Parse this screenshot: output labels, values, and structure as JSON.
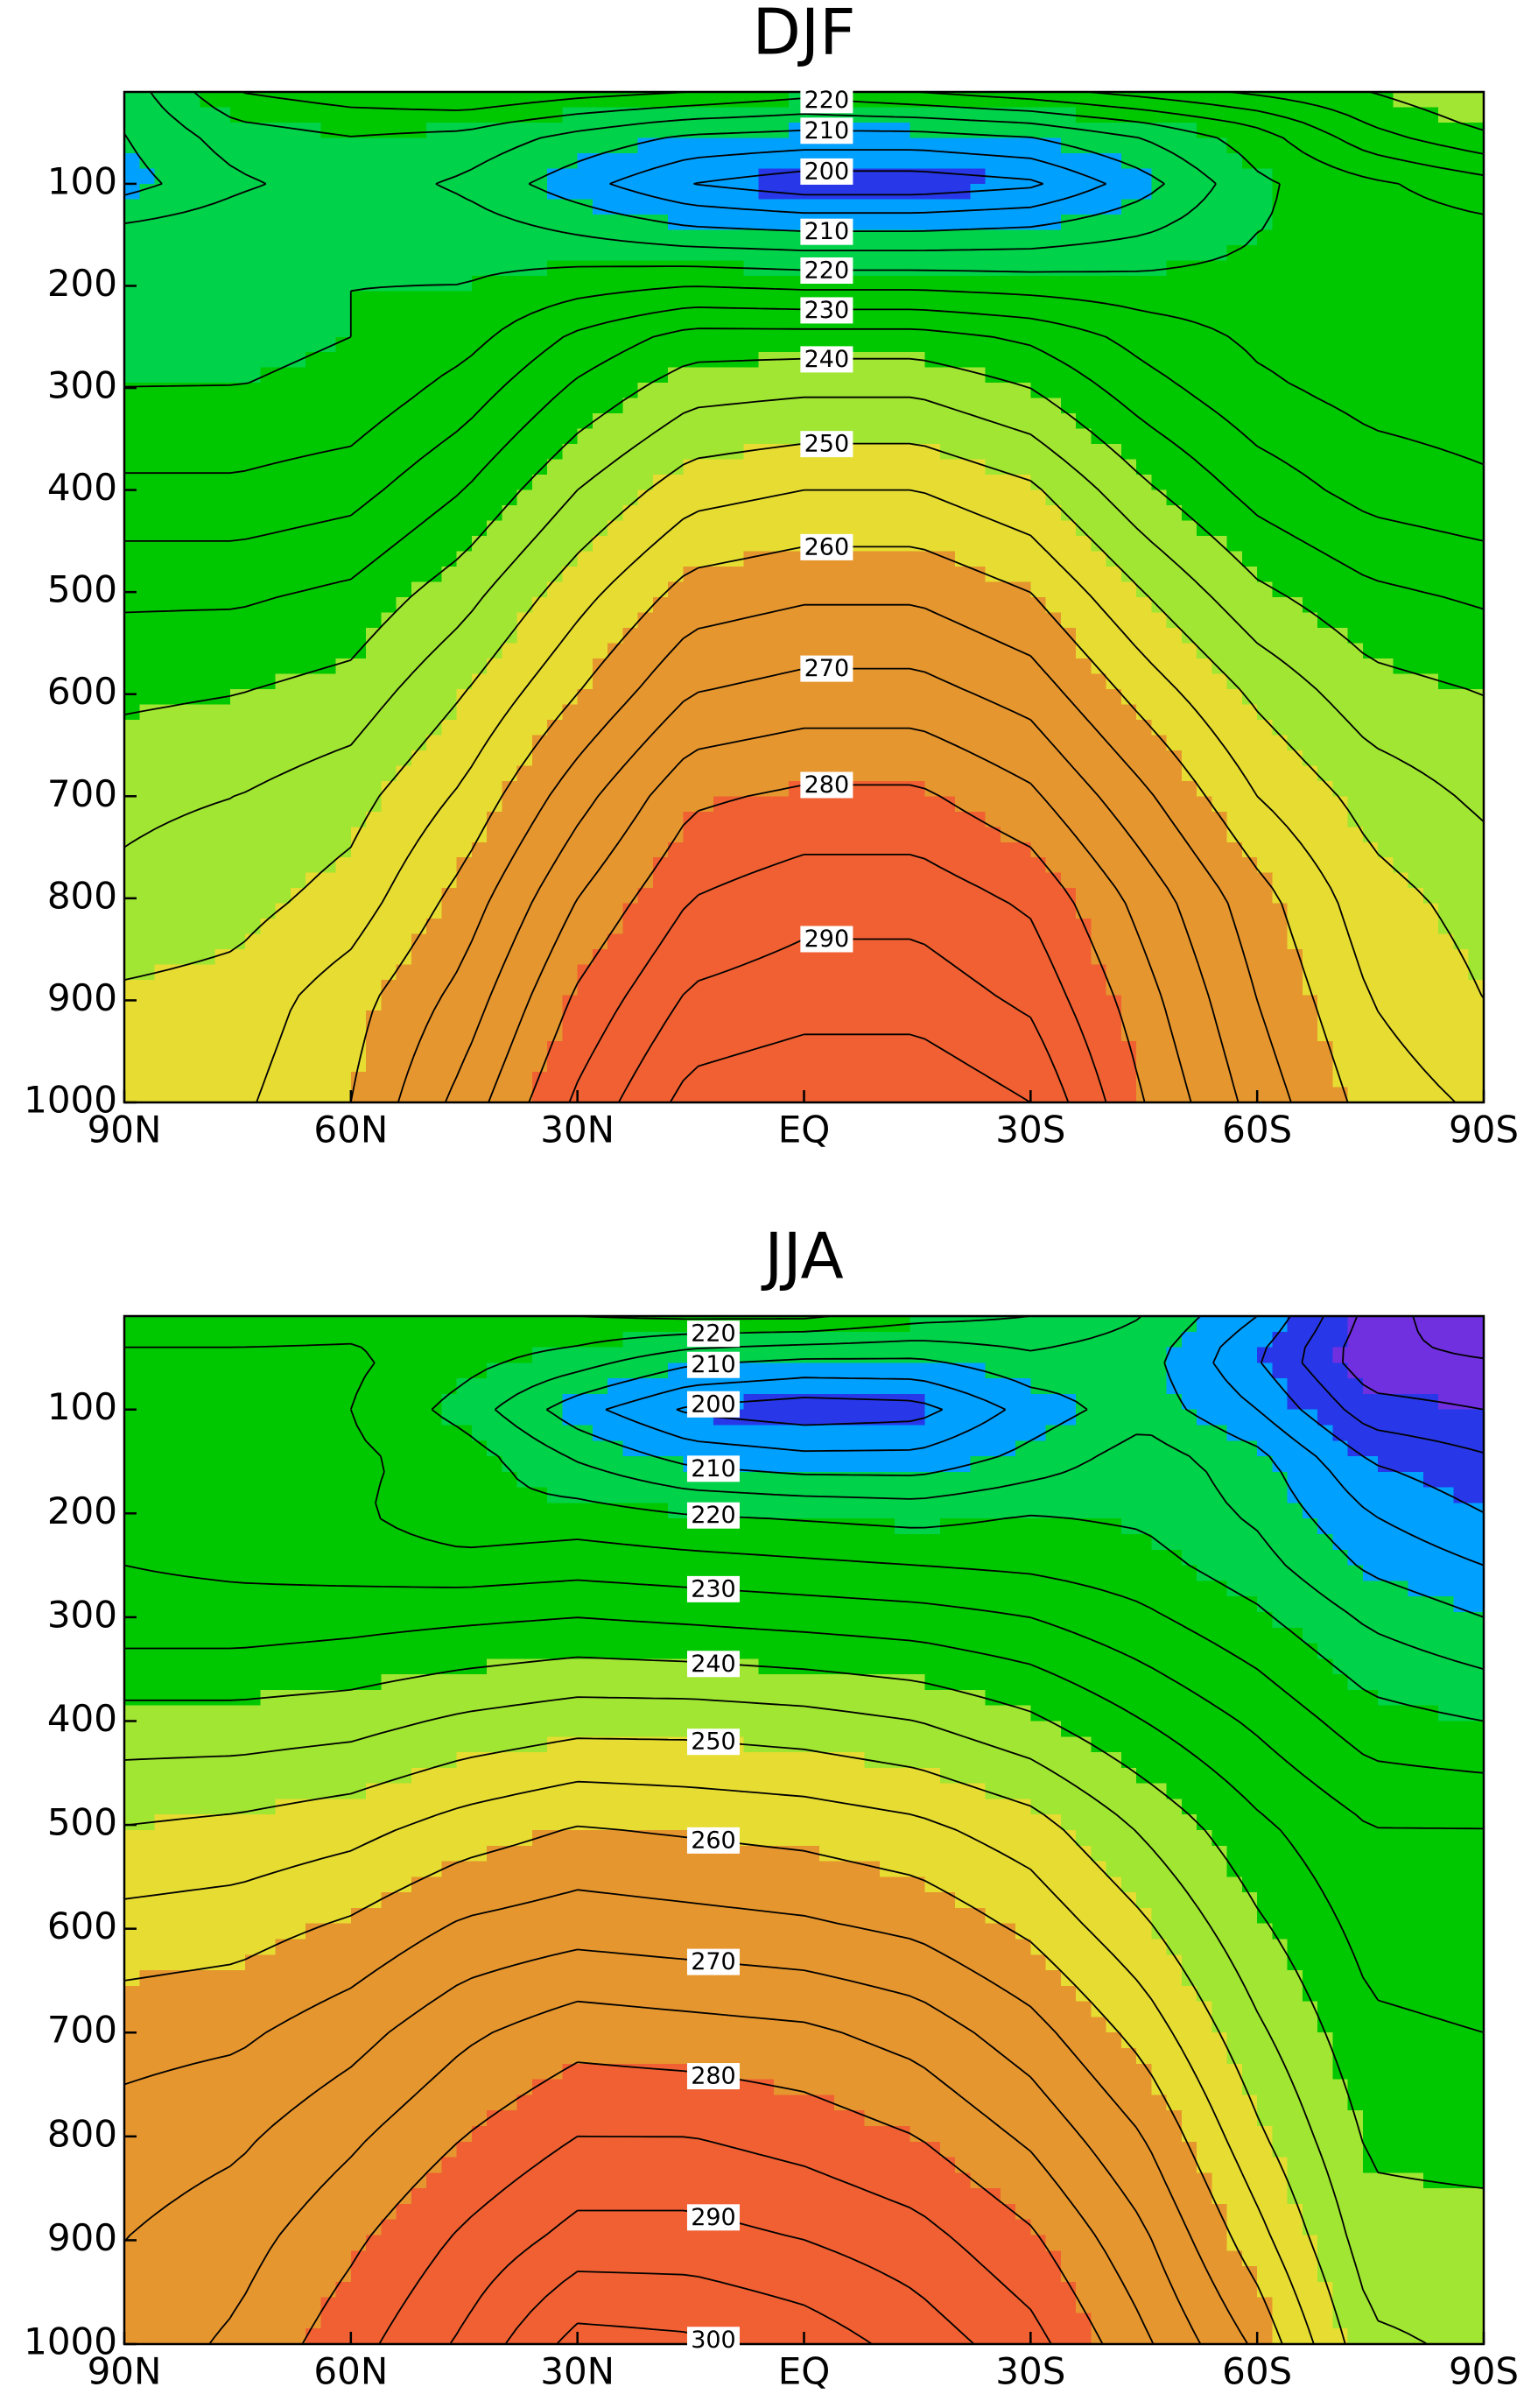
{
  "chart_data": [
    {
      "type": "contour",
      "title": "DJF",
      "x": [
        90,
        75,
        60,
        45,
        30,
        15,
        0,
        -15,
        -30,
        -45,
        -60,
        -75,
        -90
      ],
      "y": [
        10,
        50,
        100,
        150,
        200,
        250,
        300,
        400,
        500,
        600,
        700,
        800,
        900,
        1000
      ],
      "values": [
        [
          212,
          225,
          228,
          230,
          227,
          225,
          222,
          225,
          228,
          232,
          236,
          240,
          245
        ],
        [
          210,
          218,
          220,
          219,
          214,
          210,
          209,
          209,
          211,
          216,
          223,
          234,
          240
        ],
        [
          208,
          214,
          218,
          214,
          207,
          200,
          197,
          197,
          199,
          208,
          219,
          224,
          228
        ],
        [
          217,
          219,
          219,
          218,
          215,
          212,
          211,
          211,
          212,
          215,
          220,
          222,
          223
        ],
        [
          218,
          219,
          220,
          220,
          223,
          225,
          224,
          224,
          223,
          222,
          222,
          221,
          221
        ],
        [
          218,
          219,
          220,
          223,
          231,
          237,
          237,
          237,
          234,
          228,
          224,
          222,
          221
        ],
        [
          220,
          220,
          221,
          227,
          236,
          243,
          244,
          244,
          240,
          232,
          226,
          223,
          222
        ],
        [
          226,
          226,
          228,
          235,
          245,
          253,
          255,
          255,
          251,
          241,
          233,
          228,
          226
        ],
        [
          234,
          234,
          236,
          243,
          253,
          262,
          264,
          264,
          260,
          250,
          241,
          236,
          234
        ],
        [
          239,
          240,
          242,
          250,
          260,
          270,
          272,
          272,
          268,
          258,
          249,
          242,
          240
        ],
        [
          244,
          245,
          248,
          256,
          268,
          279,
          281,
          281,
          276,
          266,
          255,
          248,
          244
        ],
        [
          246,
          248,
          252,
          262,
          275,
          285,
          288,
          288,
          284,
          273,
          262,
          252,
          248
        ],
        [
          251,
          252,
          258,
          267,
          281,
          291,
          293,
          293,
          289,
          277,
          265,
          255,
          250
        ],
        [
          252,
          254,
          260,
          272,
          286,
          297,
          299,
          299,
          295,
          280,
          268,
          258,
          254
        ]
      ],
      "xlim": [
        90,
        -90
      ],
      "ylim": [
        10,
        1000
      ],
      "xticks": [
        {
          "value": 90,
          "label": "90N"
        },
        {
          "value": 60,
          "label": "60N"
        },
        {
          "value": 30,
          "label": "30N"
        },
        {
          "value": 0,
          "label": "EQ"
        },
        {
          "value": -30,
          "label": "30S"
        },
        {
          "value": -60,
          "label": "60S"
        },
        {
          "value": -90,
          "label": "90S"
        }
      ],
      "yticks": [
        100,
        200,
        300,
        400,
        500,
        600,
        700,
        800,
        900,
        1000
      ],
      "color_levels": [
        190,
        200,
        210,
        220,
        240,
        250,
        260,
        280
      ],
      "colors": [
        "#7030e0",
        "#2838e8",
        "#00a0ff",
        "#00d24a",
        "#00c800",
        "#a0e632",
        "#e6dc32",
        "#e6962e",
        "#f06032"
      ],
      "contour_levels": [
        190,
        195,
        200,
        205,
        210,
        215,
        220,
        225,
        230,
        235,
        240,
        245,
        250,
        255,
        260,
        265,
        270,
        275,
        280,
        285,
        290,
        295,
        300
      ],
      "contour_labels": [
        220,
        210,
        200,
        210,
        220,
        230,
        240,
        250,
        260,
        270,
        280,
        290
      ]
    },
    {
      "type": "contour",
      "title": "JJA",
      "x": [
        90,
        75,
        60,
        45,
        30,
        15,
        0,
        -15,
        -30,
        -45,
        -60,
        -75,
        -90
      ],
      "y": [
        10,
        50,
        100,
        150,
        200,
        250,
        300,
        400,
        500,
        600,
        700,
        800,
        900,
        1000
      ],
      "values": [
        [
          222,
          222,
          223,
          224,
          225,
          226,
          226,
          222,
          220,
          215,
          205,
          188,
          180
        ],
        [
          226,
          226,
          226,
          222,
          218,
          212,
          210,
          210,
          214,
          212,
          200,
          186,
          185
        ],
        [
          230,
          228,
          225,
          218,
          207,
          199,
          197,
          198,
          207,
          213,
          205,
          192,
          190
        ],
        [
          230,
          228,
          226,
          223,
          215,
          209,
          207,
          207,
          212,
          218,
          212,
          200,
          196
        ],
        [
          230,
          228,
          226,
          221,
          222,
          220,
          219,
          218,
          220,
          219,
          214,
          205,
          200
        ],
        [
          230,
          229,
          228,
          227,
          228,
          227,
          226,
          225,
          224,
          222,
          217,
          209,
          205
        ],
        [
          232,
          232,
          233,
          234,
          235,
          234,
          233,
          232,
          230,
          226,
          221,
          214,
          210
        ],
        [
          242,
          242,
          243,
          246,
          248,
          248,
          247,
          245,
          241,
          235,
          229,
          222,
          220
        ],
        [
          250,
          251,
          253,
          257,
          260,
          259,
          258,
          256,
          252,
          244,
          236,
          230,
          230
        ],
        [
          257,
          258,
          261,
          266,
          268,
          267,
          266,
          264,
          259,
          251,
          241,
          233,
          232
        ],
        [
          263,
          264,
          268,
          274,
          278,
          277,
          276,
          273,
          267,
          258,
          246,
          236,
          235
        ],
        [
          267,
          269,
          274,
          280,
          285,
          285,
          283,
          280,
          274,
          265,
          251,
          239,
          238
        ],
        [
          270,
          273,
          279,
          286,
          292,
          292,
          290,
          287,
          281,
          271,
          257,
          242,
          242
        ],
        [
          272,
          276,
          283,
          291,
          302,
          301,
          298,
          293,
          287,
          276,
          264,
          246,
          244
        ]
      ],
      "xlim": [
        90,
        -90
      ],
      "ylim": [
        10,
        1000
      ],
      "xticks": [
        {
          "value": 90,
          "label": "90N"
        },
        {
          "value": 60,
          "label": "60N"
        },
        {
          "value": 30,
          "label": "30N"
        },
        {
          "value": 0,
          "label": "EQ"
        },
        {
          "value": -30,
          "label": "30S"
        },
        {
          "value": -60,
          "label": "60S"
        },
        {
          "value": -90,
          "label": "90S"
        }
      ],
      "yticks": [
        100,
        200,
        300,
        400,
        500,
        600,
        700,
        800,
        900,
        1000
      ],
      "color_levels": [
        190,
        200,
        210,
        220,
        240,
        250,
        260,
        280
      ],
      "colors": [
        "#7030e0",
        "#2838e8",
        "#00a0ff",
        "#00d24a",
        "#00c800",
        "#a0e632",
        "#e6dc32",
        "#e6962e",
        "#f06032"
      ],
      "contour_levels": [
        180,
        185,
        190,
        195,
        200,
        205,
        210,
        215,
        220,
        225,
        230,
        235,
        240,
        245,
        250,
        255,
        260,
        265,
        270,
        275,
        280,
        285,
        290,
        295,
        300
      ],
      "contour_labels": [
        220,
        210,
        200,
        210,
        220,
        230,
        240,
        250,
        260,
        270,
        280,
        290,
        300
      ]
    }
  ]
}
